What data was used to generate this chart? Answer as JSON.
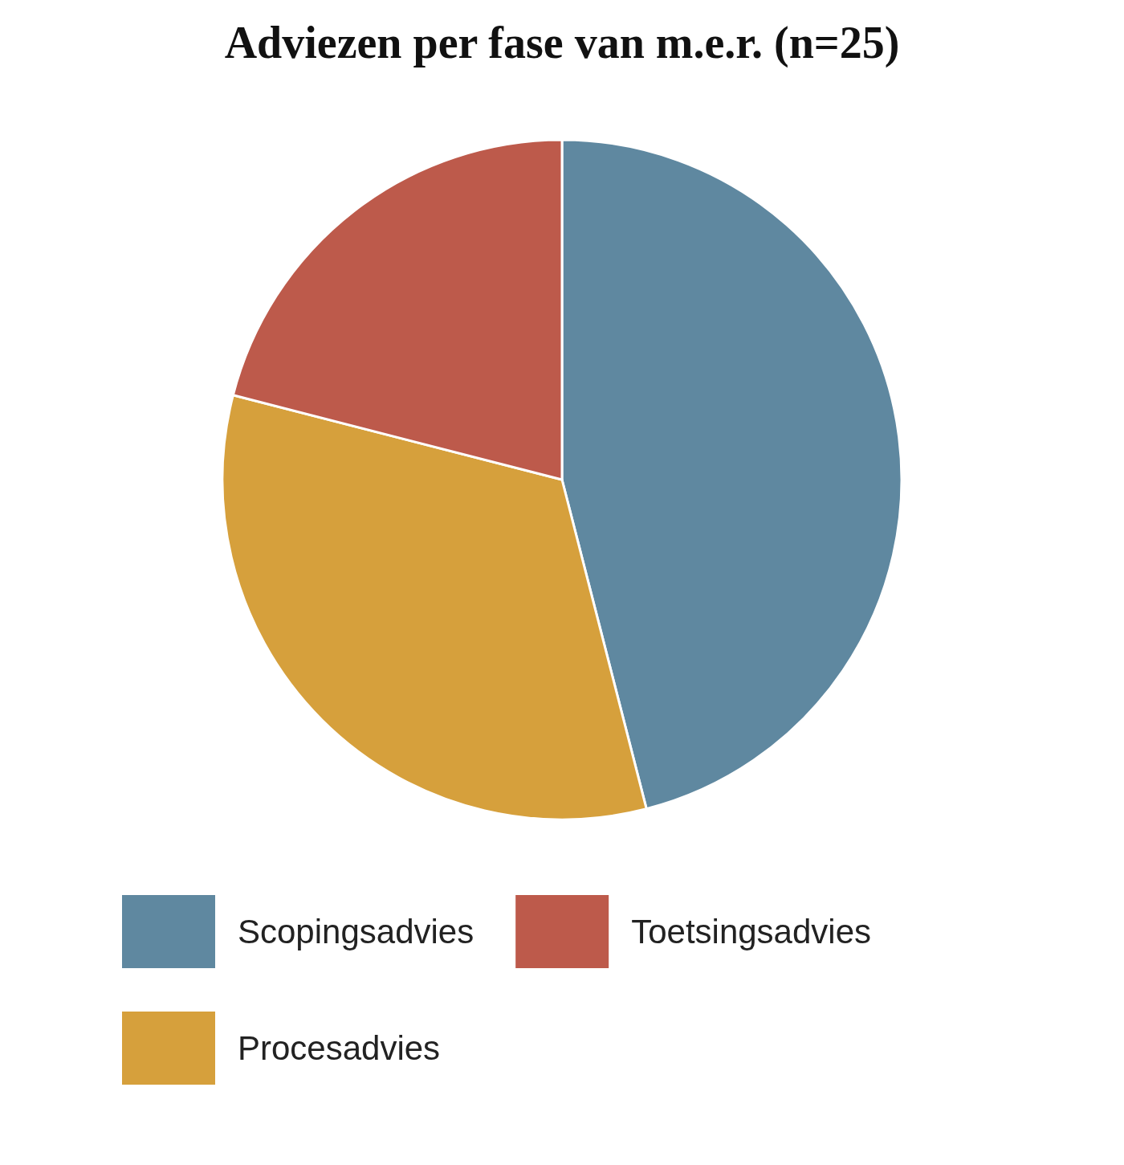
{
  "chart_data": {
    "type": "pie",
    "title": "Adviezen per fase van m.e.r. (n=25)",
    "categories": [
      "Scopingsadvies",
      "Procesadvies",
      "Toetsingsadvies"
    ],
    "values": [
      46,
      33,
      21
    ],
    "colors": [
      "#5f88a0",
      "#d6a03c",
      "#bd5a4b"
    ],
    "legend": "bottom"
  }
}
